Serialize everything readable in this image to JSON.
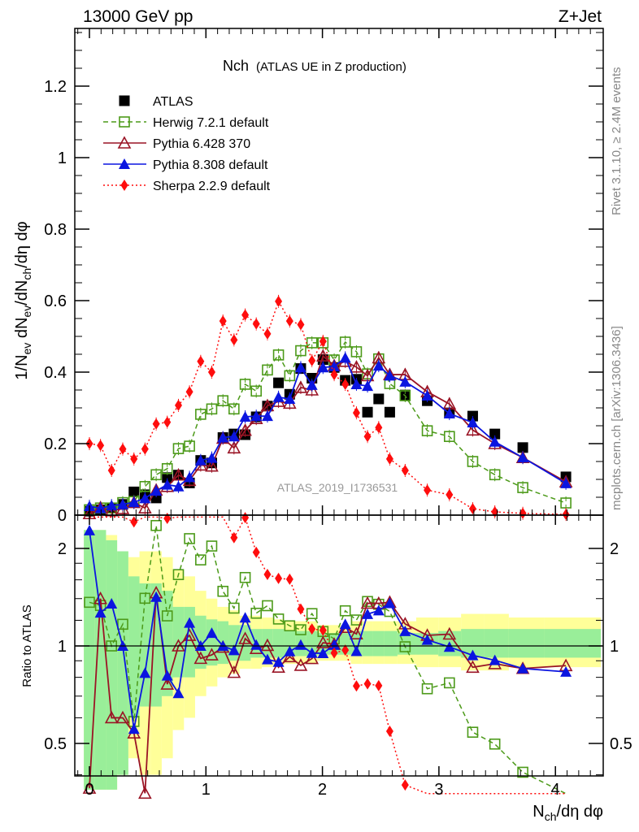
{
  "header": {
    "left": "13000 GeV pp",
    "right": "Z+Jet",
    "side_rivet": "Rivet 3.1.10, ≥ 2.4M events",
    "side_mcplots": "mcplots.cern.ch [arXiv:1306.3436]",
    "watermark": "ATLAS_2019_I1736531"
  },
  "chart_data": [
    {
      "type": "scatter",
      "title": "Nch",
      "subtitle": "(ATLAS UE in Z production)",
      "xlabel": "N_ch/dη dφ",
      "ylabel": "1/N_ev dN_ev/dN_ch/dη dφ",
      "xlim": [
        -0.12,
        4.4
      ],
      "ylim": [
        0,
        1.37
      ],
      "xticks": [
        "0",
        "1",
        "2",
        "3",
        "4"
      ],
      "yticks": [
        "0",
        "0.2",
        "0.4",
        "0.6",
        "0.8",
        "1",
        "1.2"
      ],
      "legend_position": "top-left",
      "x": [
        0.0,
        0.095,
        0.19,
        0.286,
        0.382,
        0.477,
        0.573,
        0.668,
        0.764,
        0.859,
        0.955,
        1.05,
        1.146,
        1.241,
        1.337,
        1.432,
        1.528,
        1.623,
        1.719,
        1.814,
        1.91,
        2.005,
        2.101,
        2.196,
        2.292,
        2.387,
        2.483,
        2.578,
        2.71,
        2.9,
        3.09,
        3.29,
        3.48,
        3.72,
        4.09
      ],
      "series": [
        {
          "name": "ATLAS",
          "color": "#000000",
          "marker": "square-filled",
          "line": "none",
          "values": [
            0.011,
            0.015,
            0.02,
            0.03,
            0.065,
            0.057,
            0.048,
            0.105,
            0.112,
            0.09,
            0.153,
            0.146,
            0.217,
            0.227,
            0.225,
            0.275,
            0.305,
            0.37,
            0.338,
            0.41,
            0.383,
            0.435,
            0.413,
            0.377,
            0.38,
            0.288,
            0.325,
            0.288,
            0.336,
            0.32,
            0.286,
            0.277,
            0.227,
            0.189,
            0.107
          ]
        },
        {
          "name": "Herwig 7.2.1 default",
          "color": "#4c9a19",
          "marker": "square-open",
          "line": "dashed",
          "values": [
            0.015,
            0.02,
            0.02,
            0.035,
            0.038,
            0.08,
            0.113,
            0.13,
            0.186,
            0.193,
            0.282,
            0.297,
            0.32,
            0.297,
            0.366,
            0.347,
            0.406,
            0.448,
            0.39,
            0.46,
            0.482,
            0.482,
            0.434,
            0.484,
            0.457,
            0.395,
            0.437,
            0.368,
            0.334,
            0.236,
            0.22,
            0.15,
            0.113,
            0.077,
            0.034
          ]
        },
        {
          "name": "Pythia 6.428 370",
          "color": "#9a1425",
          "marker": "triangle-open",
          "line": "solid",
          "values": [
            0.004,
            0.021,
            0.012,
            0.018,
            0.035,
            0.02,
            0.07,
            0.08,
            0.112,
            0.097,
            0.14,
            0.137,
            0.215,
            0.188,
            0.237,
            0.27,
            0.306,
            0.318,
            0.313,
            0.357,
            0.35,
            0.445,
            0.418,
            0.43,
            0.414,
            0.39,
            0.44,
            0.393,
            0.393,
            0.345,
            0.311,
            0.238,
            0.2,
            0.161,
            0.093
          ]
        },
        {
          "name": "Pythia 8.308 default",
          "color": "#0b15e0",
          "marker": "triangle-filled",
          "line": "solid",
          "values": [
            0.025,
            0.019,
            0.027,
            0.03,
            0.036,
            0.047,
            0.068,
            0.085,
            0.08,
            0.106,
            0.153,
            0.16,
            0.217,
            0.22,
            0.275,
            0.277,
            0.277,
            0.33,
            0.325,
            0.413,
            0.364,
            0.413,
            0.416,
            0.44,
            0.366,
            0.361,
            0.418,
            0.39,
            0.373,
            0.334,
            0.284,
            0.259,
            0.205,
            0.161,
            0.089
          ]
        },
        {
          "name": "Sherpa 2.2.9 default",
          "color": "#ff0d0d",
          "marker": "diamond-filled",
          "line": "dotted",
          "values": [
            0.2,
            0.195,
            0.125,
            0.185,
            0.157,
            0.185,
            0.255,
            0.26,
            0.307,
            0.345,
            0.43,
            0.4,
            0.543,
            0.49,
            0.56,
            0.535,
            0.507,
            0.598,
            0.543,
            0.533,
            0.432,
            0.486,
            0.393,
            0.366,
            0.286,
            0.22,
            0.245,
            0.157,
            0.125,
            0.07,
            0.057,
            0.018,
            0.009,
            0.005,
            0.002
          ]
        }
      ]
    },
    {
      "type": "scatter",
      "ylabel": "Ratio to ATLAS",
      "yscale": "log",
      "ylim": [
        0.35,
        2.5
      ],
      "yticks": [
        "0.5",
        "1",
        "2"
      ],
      "reference": "ATLAS",
      "stat_band_rel": [
        0.8,
        0.8,
        0.7,
        0.6,
        0.4,
        0.35,
        0.35,
        0.3,
        0.2,
        0.2,
        0.15,
        0.13,
        0.12,
        0.1,
        0.1,
        0.08,
        0.08,
        0.08,
        0.07,
        0.07,
        0.07,
        0.06,
        0.06,
        0.06,
        0.07,
        0.07,
        0.07,
        0.07,
        0.06,
        0.06,
        0.07,
        0.08,
        0.08,
        0.08,
        0.08
      ],
      "total_band_rel": [
        0.8,
        0.8,
        0.75,
        0.6,
        0.55,
        0.6,
        0.6,
        0.55,
        0.45,
        0.4,
        0.3,
        0.25,
        0.2,
        0.18,
        0.15,
        0.15,
        0.14,
        0.13,
        0.12,
        0.12,
        0.12,
        0.1,
        0.1,
        0.1,
        0.12,
        0.12,
        0.12,
        0.12,
        0.12,
        0.14,
        0.14,
        0.16,
        0.16,
        0.14,
        0.14
      ]
    }
  ]
}
